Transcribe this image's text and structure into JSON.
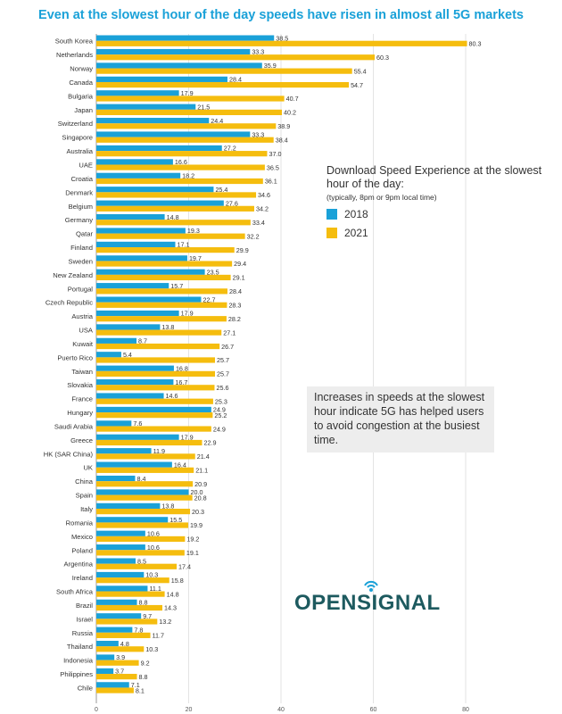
{
  "chart_data": {
    "type": "bar",
    "orientation": "horizontal",
    "title": "Even at the slowest hour of the day speeds have risen in almost all 5G markets",
    "categories": [
      "South Korea",
      "Netherlands",
      "Norway",
      "Canada",
      "Bulgaria",
      "Japan",
      "Switzerland",
      "Singapore",
      "Australia",
      "UAE",
      "Croatia",
      "Denmark",
      "Belgium",
      "Germany",
      "Qatar",
      "Finland",
      "Sweden",
      "New Zealand",
      "Portugal",
      "Czech Republic",
      "Austria",
      "USA",
      "Kuwait",
      "Puerto Rico",
      "Taiwan",
      "Slovakia",
      "France",
      "Hungary",
      "Saudi Arabia",
      "Greece",
      "HK (SAR China)",
      "UK",
      "China",
      "Spain",
      "Italy",
      "Romania",
      "Mexico",
      "Poland",
      "Argentina",
      "Ireland",
      "South Africa",
      "Brazil",
      "Israel",
      "Russia",
      "Thailand",
      "Indonesia",
      "Philippines",
      "Chile"
    ],
    "series": [
      {
        "name": "2018",
        "color": "#1aa1d8",
        "values": [
          38.5,
          33.3,
          35.9,
          28.4,
          17.9,
          21.5,
          24.4,
          33.3,
          27.2,
          16.6,
          18.2,
          25.4,
          27.6,
          14.8,
          19.3,
          17.1,
          19.7,
          23.5,
          15.7,
          22.7,
          17.9,
          13.8,
          8.7,
          5.4,
          16.8,
          16.7,
          14.6,
          24.9,
          7.6,
          17.9,
          11.9,
          16.4,
          8.4,
          20.0,
          13.8,
          15.5,
          10.6,
          10.6,
          8.5,
          10.3,
          11.1,
          8.8,
          9.7,
          7.8,
          4.8,
          3.9,
          3.7,
          7.1
        ]
      },
      {
        "name": "2021",
        "color": "#f5bd0e",
        "values": [
          80.3,
          60.3,
          55.4,
          54.7,
          40.7,
          40.2,
          38.9,
          38.4,
          37.0,
          36.5,
          36.1,
          34.6,
          34.2,
          33.4,
          32.2,
          29.9,
          29.4,
          29.1,
          28.4,
          28.3,
          28.2,
          27.1,
          26.7,
          25.7,
          25.7,
          25.6,
          25.3,
          25.2,
          24.9,
          22.9,
          21.4,
          21.1,
          20.9,
          20.8,
          20.3,
          19.9,
          19.2,
          19.1,
          17.4,
          15.8,
          14.8,
          14.3,
          13.2,
          11.7,
          10.3,
          9.2,
          8.8,
          8.1
        ]
      }
    ],
    "xlim": [
      0,
      80
    ],
    "xticks": [
      "0",
      "20",
      "40",
      "60",
      "80"
    ],
    "grid": true,
    "legend_title": "Download Speed Experience at the slowest hour of the day:",
    "legend_subtitle": "(typically, 8pm or 9pm local time)",
    "legend_position": "right-middle",
    "annotation": "Increases in speeds at the slowest hour indicate 5G has helped users to avoid congestion at the busiest time.",
    "brand": "OPENSIGNAL"
  }
}
